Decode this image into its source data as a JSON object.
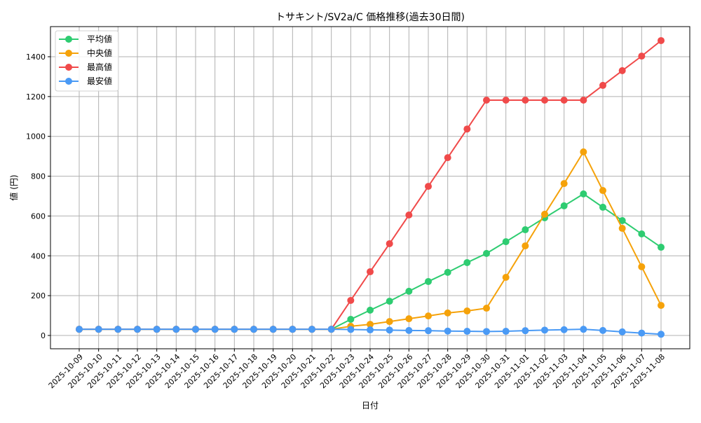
{
  "chart_data": {
    "type": "line",
    "title": "トサキント/SV2a/C 価格推移(過去30日間)",
    "xlabel": "日付",
    "ylabel": "値 (円)",
    "ylim": [
      -60,
      1550
    ],
    "yticks": [
      0,
      200,
      400,
      600,
      800,
      1000,
      1200,
      1400
    ],
    "grid": true,
    "legend_position": "upper left",
    "x": [
      "2025-10-09",
      "2025-10-10",
      "2025-10-11",
      "2025-10-12",
      "2025-10-13",
      "2025-10-14",
      "2025-10-15",
      "2025-10-16",
      "2025-10-17",
      "2025-10-18",
      "2025-10-19",
      "2025-10-20",
      "2025-10-21",
      "2025-10-22",
      "2025-10-23",
      "2025-10-24",
      "2025-10-25",
      "2025-10-26",
      "2025-10-27",
      "2025-10-28",
      "2025-10-29",
      "2025-10-30",
      "2025-10-31",
      "2025-11-01",
      "2025-11-02",
      "2025-11-03",
      "2025-11-04",
      "2025-11-05",
      "2025-11-06",
      "2025-11-07",
      "2025-11-08"
    ],
    "series": [
      {
        "name": "平均値",
        "color": "#2ecc71",
        "values": [
          31,
          31,
          31,
          31,
          31,
          31,
          31,
          31,
          31,
          31,
          31,
          31,
          31,
          31,
          81,
          127,
          172,
          222,
          271,
          317,
          366,
          412,
          471,
          531,
          591,
          651,
          711,
          644,
          577,
          510,
          443
        ]
      },
      {
        "name": "中央値",
        "color": "#f5a20a",
        "values": [
          31,
          31,
          31,
          31,
          31,
          31,
          31,
          31,
          31,
          31,
          31,
          31,
          31,
          31,
          46,
          56,
          70,
          84,
          98,
          113,
          123,
          137,
          292,
          450,
          609,
          763,
          922,
          728,
          538,
          345,
          151
        ]
      },
      {
        "name": "最高値",
        "color": "#f04a4a",
        "values": [
          31,
          31,
          31,
          31,
          31,
          31,
          31,
          31,
          31,
          31,
          31,
          31,
          31,
          31,
          176,
          320,
          461,
          605,
          749,
          893,
          1037,
          1182,
          1182,
          1182,
          1182,
          1182,
          1182,
          1256,
          1330,
          1403,
          1481
        ]
      },
      {
        "name": "最安値",
        "color": "#4a9af5",
        "values": [
          31,
          31,
          31,
          31,
          31,
          31,
          31,
          31,
          31,
          31,
          31,
          31,
          31,
          31,
          30,
          28,
          27,
          25,
          24,
          22,
          21,
          20,
          21,
          24,
          27,
          29,
          31,
          25,
          18,
          12,
          6
        ]
      }
    ]
  }
}
